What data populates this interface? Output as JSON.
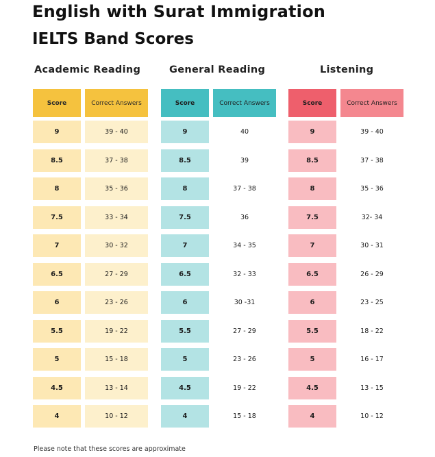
{
  "title": "English with Surat Immigration",
  "subtitle": "IELTS Band Scores",
  "headers": {
    "score": "Score",
    "answers": "Correct Answers"
  },
  "sections": [
    {
      "title": "Academic Reading",
      "colors": {
        "header": "#f5c23e",
        "score_cell": "#fde8b4",
        "answer_cell": "#fdf0cc"
      },
      "rows": [
        {
          "score": "9",
          "answers": "39 - 40"
        },
        {
          "score": "8.5",
          "answers": "37 - 38"
        },
        {
          "score": "8",
          "answers": "35 - 36"
        },
        {
          "score": "7.5",
          "answers": "33 - 34"
        },
        {
          "score": "7",
          "answers": "30 - 32"
        },
        {
          "score": "6.5",
          "answers": "27 - 29"
        },
        {
          "score": "6",
          "answers": "23 - 26"
        },
        {
          "score": "5.5",
          "answers": "19 - 22"
        },
        {
          "score": "5",
          "answers": "15 - 18"
        },
        {
          "score": "4.5",
          "answers": "13 - 14"
        },
        {
          "score": "4",
          "answers": "10 - 12"
        }
      ]
    },
    {
      "title": "General Reading",
      "colors": {
        "header": "#45bec1",
        "score_cell": "#b3e3e4",
        "answer_cell": "#ffffff"
      },
      "rows": [
        {
          "score": "9",
          "answers": "40"
        },
        {
          "score": "8.5",
          "answers": "39"
        },
        {
          "score": "8",
          "answers": "37 - 38"
        },
        {
          "score": "7.5",
          "answers": "36"
        },
        {
          "score": "7",
          "answers": "34 - 35"
        },
        {
          "score": "6.5",
          "answers": "32 - 33"
        },
        {
          "score": "6",
          "answers": "30 -31"
        },
        {
          "score": "5.5",
          "answers": "27 - 29"
        },
        {
          "score": "5",
          "answers": "23 - 26"
        },
        {
          "score": "4.5",
          "answers": "19 - 22"
        },
        {
          "score": "4",
          "answers": "15 - 18"
        }
      ]
    },
    {
      "title": "Listening",
      "colors": {
        "header": "#ee5f6c",
        "score_cell": "#f9bcc1",
        "answer_cell": "#ffffff"
      },
      "rows": [
        {
          "score": "9",
          "answers": "39 - 40"
        },
        {
          "score": "8.5",
          "answers": "37 - 38"
        },
        {
          "score": "8",
          "answers": "35 - 36"
        },
        {
          "score": "7.5",
          "answers": "32- 34"
        },
        {
          "score": "7",
          "answers": "30 - 31"
        },
        {
          "score": "6.5",
          "answers": "26 - 29"
        },
        {
          "score": "6",
          "answers": "23 - 25"
        },
        {
          "score": "5.5",
          "answers": "18 - 22"
        },
        {
          "score": "5",
          "answers": "16 - 17"
        },
        {
          "score": "4.5",
          "answers": "13 - 15"
        },
        {
          "score": "4",
          "answers": "10 - 12"
        }
      ]
    }
  ],
  "note": "Please note that these scores are approximate"
}
